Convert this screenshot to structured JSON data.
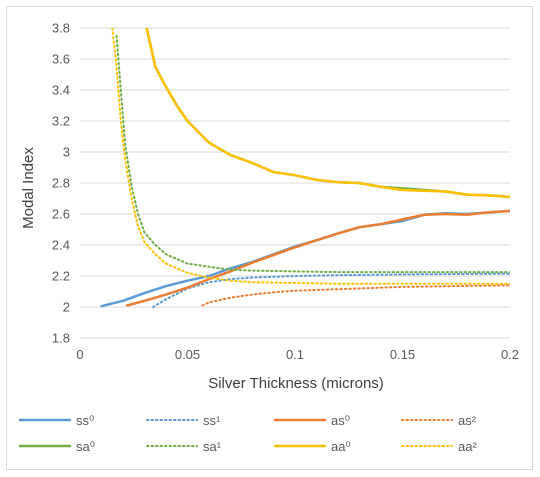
{
  "chart_data": {
    "type": "line",
    "title": "",
    "xlabel": "Silver Thickness (microns)",
    "ylabel": "Modal Index",
    "xlim": [
      0,
      0.2
    ],
    "ylim": [
      1.8,
      3.8
    ],
    "x_ticks": [
      "0",
      "0.05",
      "0.1",
      "0.15",
      "0.2"
    ],
    "y_ticks": [
      "1.8",
      "2",
      "2.2",
      "2.4",
      "2.6",
      "2.8",
      "3",
      "3.2",
      "3.4",
      "3.6",
      "3.8"
    ],
    "grid": "horizontal",
    "legend_position": "bottom",
    "series": [
      {
        "name": "ss⁰",
        "color": "#5b9bd5",
        "style": "solid",
        "x": [
          0.01,
          0.02,
          0.03,
          0.04,
          0.05,
          0.06,
          0.07,
          0.08,
          0.09,
          0.1,
          0.11,
          0.12,
          0.13,
          0.14,
          0.15,
          0.16,
          0.17,
          0.18,
          0.19,
          0.2
        ],
        "y": [
          2.005,
          2.04,
          2.09,
          2.135,
          2.17,
          2.2,
          2.25,
          2.29,
          2.34,
          2.39,
          2.43,
          2.475,
          2.515,
          2.535,
          2.555,
          2.595,
          2.605,
          2.6,
          2.61,
          2.62
        ]
      },
      {
        "name": "ss¹",
        "color": "#5b9bd5",
        "style": "dotted",
        "x": [
          0.034,
          0.04,
          0.05,
          0.06,
          0.07,
          0.08,
          0.1,
          0.12,
          0.15,
          0.2
        ],
        "y": [
          2.0,
          2.05,
          2.12,
          2.16,
          2.18,
          2.19,
          2.2,
          2.205,
          2.21,
          2.215
        ]
      },
      {
        "name": "as⁰",
        "color": "#ed7d31",
        "style": "solid",
        "x": [
          0.022,
          0.03,
          0.04,
          0.05,
          0.06,
          0.07,
          0.08,
          0.09,
          0.1,
          0.11,
          0.12,
          0.13,
          0.14,
          0.15,
          0.16,
          0.17,
          0.18,
          0.19,
          0.2
        ],
        "y": [
          2.01,
          2.04,
          2.08,
          2.125,
          2.18,
          2.23,
          2.285,
          2.335,
          2.385,
          2.43,
          2.475,
          2.515,
          2.535,
          2.565,
          2.595,
          2.6,
          2.595,
          2.61,
          2.62
        ]
      },
      {
        "name": "as²",
        "color": "#ed7d31",
        "style": "dotted",
        "x": [
          0.057,
          0.06,
          0.07,
          0.08,
          0.09,
          0.1,
          0.12,
          0.15,
          0.2
        ],
        "y": [
          2.01,
          2.03,
          2.06,
          2.08,
          2.095,
          2.105,
          2.115,
          2.13,
          2.14
        ]
      },
      {
        "name": "sa⁰",
        "color": "#70ad47",
        "style": "solid",
        "x": [
          0.031,
          0.035,
          0.04,
          0.045,
          0.05,
          0.06,
          0.07,
          0.08,
          0.09,
          0.1,
          0.11,
          0.12,
          0.13,
          0.14,
          0.15,
          0.16,
          0.17,
          0.18,
          0.19,
          0.2
        ],
        "y": [
          3.8,
          3.55,
          3.42,
          3.3,
          3.2,
          3.06,
          2.98,
          2.93,
          2.87,
          2.85,
          2.82,
          2.805,
          2.8,
          2.775,
          2.765,
          2.755,
          2.745,
          2.725,
          2.72,
          2.71
        ]
      },
      {
        "name": "sa¹",
        "color": "#70ad47",
        "style": "dotted",
        "x": [
          0.017,
          0.019,
          0.021,
          0.024,
          0.027,
          0.03,
          0.035,
          0.04,
          0.05,
          0.06,
          0.07,
          0.08,
          0.1,
          0.12,
          0.15,
          0.2
        ],
        "y": [
          3.75,
          3.4,
          3.05,
          2.78,
          2.6,
          2.48,
          2.4,
          2.34,
          2.28,
          2.26,
          2.24,
          2.235,
          2.23,
          2.225,
          2.225,
          2.225
        ]
      },
      {
        "name": "aa⁰",
        "color": "#ffc000",
        "style": "solid",
        "x": [
          0.031,
          0.035,
          0.04,
          0.045,
          0.05,
          0.06,
          0.07,
          0.08,
          0.09,
          0.1,
          0.11,
          0.12,
          0.13,
          0.14,
          0.15,
          0.16,
          0.17,
          0.18,
          0.19,
          0.2
        ],
        "y": [
          3.8,
          3.55,
          3.42,
          3.3,
          3.2,
          3.06,
          2.98,
          2.93,
          2.87,
          2.85,
          2.82,
          2.805,
          2.8,
          2.775,
          2.755,
          2.75,
          2.745,
          2.725,
          2.72,
          2.71
        ]
      },
      {
        "name": "aa²",
        "color": "#ffc000",
        "style": "dotted",
        "x": [
          0.015,
          0.017,
          0.019,
          0.021,
          0.024,
          0.027,
          0.03,
          0.035,
          0.04,
          0.05,
          0.06,
          0.07,
          0.08,
          0.1,
          0.12,
          0.15,
          0.2
        ],
        "y": [
          3.8,
          3.55,
          3.2,
          2.95,
          2.7,
          2.52,
          2.42,
          2.34,
          2.28,
          2.22,
          2.19,
          2.17,
          2.16,
          2.155,
          2.15,
          2.15,
          2.15
        ]
      }
    ]
  }
}
